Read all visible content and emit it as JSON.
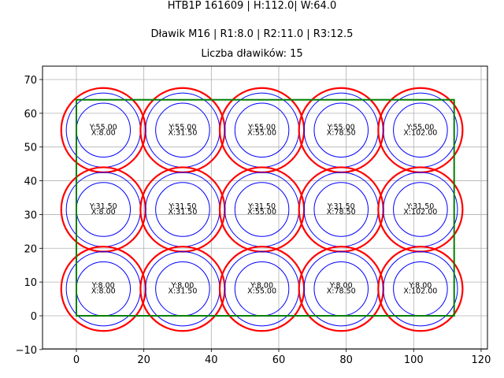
{
  "titles": {
    "line1": "HTB1P 161609 | H:112.0| W:64.0",
    "line2": "Dławik M16 | R1:8.0 | R2:11.0 | R3:12.5",
    "line3": "Liczba dławików: 15"
  },
  "colors": {
    "outer_circle": "#ff0000",
    "inner_circles": "#0000ff",
    "rectangle": "#008000",
    "grid": "#b0b0b0"
  },
  "chart_data": {
    "type": "scatter",
    "title": "HTB1P 161609 | H:112.0| W:64.0 / Dławik M16 | R1:8.0 | R2:11.0 | R3:12.5 / Liczba dławików: 15",
    "xlabel": "",
    "ylabel": "",
    "xlim": [
      -10,
      122
    ],
    "ylim": [
      -10,
      74
    ],
    "xticks": [
      0,
      20,
      40,
      60,
      80,
      100,
      120
    ],
    "yticks": [
      -10,
      0,
      10,
      20,
      30,
      40,
      50,
      60,
      70
    ],
    "grid": true,
    "rectangle": {
      "x": 0,
      "y": 0,
      "width": 112.0,
      "height": 64.0
    },
    "radii": {
      "R1": 8.0,
      "R2": 11.0,
      "R3": 12.5
    },
    "count": 15,
    "points": [
      {
        "x": 8.0,
        "y": 55.0,
        "label_y": "Y:55.00",
        "label_x": "X:8.00"
      },
      {
        "x": 31.5,
        "y": 55.0,
        "label_y": "Y:55.00",
        "label_x": "X:31.50"
      },
      {
        "x": 55.0,
        "y": 55.0,
        "label_y": "Y:55.00",
        "label_x": "X:55.00"
      },
      {
        "x": 78.5,
        "y": 55.0,
        "label_y": "Y:55.00",
        "label_x": "X:78.50"
      },
      {
        "x": 102.0,
        "y": 55.0,
        "label_y": "Y:55.00",
        "label_x": "X:102.00"
      },
      {
        "x": 8.0,
        "y": 31.5,
        "label_y": "Y:31.50",
        "label_x": "X:8.00"
      },
      {
        "x": 31.5,
        "y": 31.5,
        "label_y": "Y:31.50",
        "label_x": "X:31.50"
      },
      {
        "x": 55.0,
        "y": 31.5,
        "label_y": "Y:31.50",
        "label_x": "X:55.00"
      },
      {
        "x": 78.5,
        "y": 31.5,
        "label_y": "Y:31.50",
        "label_x": "X:78.50"
      },
      {
        "x": 102.0,
        "y": 31.5,
        "label_y": "Y:31.50",
        "label_x": "X:102.00"
      },
      {
        "x": 8.0,
        "y": 8.0,
        "label_y": "Y:8.00",
        "label_x": "X:8.00"
      },
      {
        "x": 31.5,
        "y": 8.0,
        "label_y": "Y:8.00",
        "label_x": "X:31.50"
      },
      {
        "x": 55.0,
        "y": 8.0,
        "label_y": "Y:8.00",
        "label_x": "X:55.00"
      },
      {
        "x": 78.5,
        "y": 8.0,
        "label_y": "Y:8.00",
        "label_x": "X:78.50"
      },
      {
        "x": 102.0,
        "y": 8.0,
        "label_y": "Y:8.00",
        "label_x": "X:102.00"
      }
    ]
  }
}
